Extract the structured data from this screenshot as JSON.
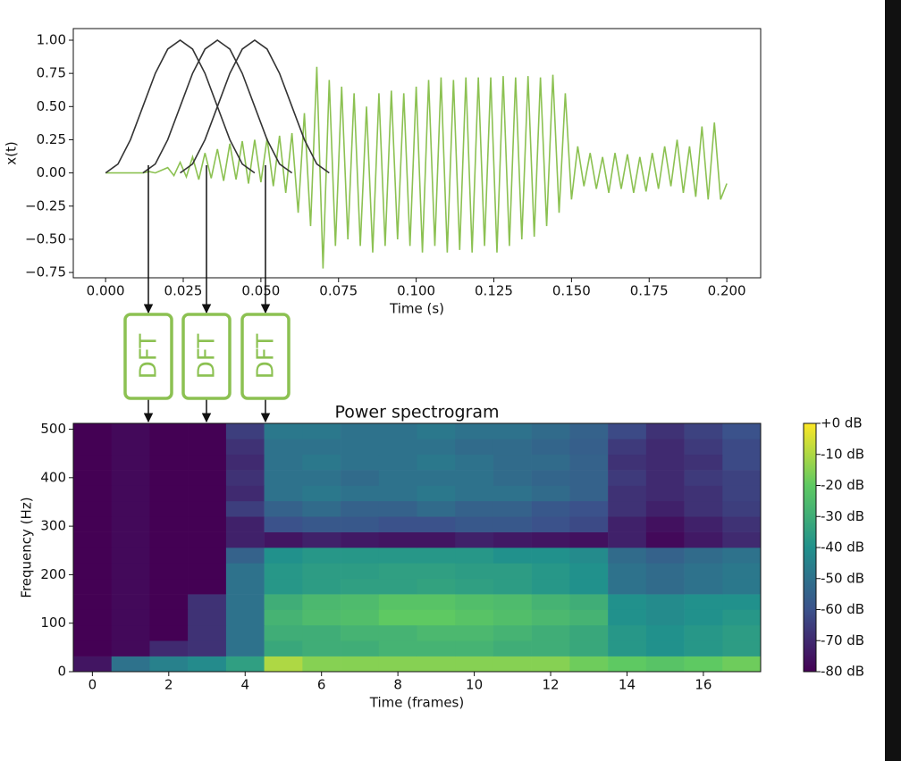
{
  "chart_data": [
    {
      "type": "line",
      "xlabel": "Time (s)",
      "ylabel": "x(t)",
      "xlim": [
        -0.0104,
        0.2109
      ],
      "ylim": [
        -0.79,
        1.0875
      ],
      "xticks": [
        {
          "value": 0,
          "label": "0.000"
        },
        {
          "value": 0.025,
          "label": "0.025"
        },
        {
          "value": 0.05,
          "label": "0.050"
        },
        {
          "value": 0.075,
          "label": "0.075"
        },
        {
          "value": 0.1,
          "label": "0.100"
        },
        {
          "value": 0.125,
          "label": "0.125"
        },
        {
          "value": 0.15,
          "label": "0.150"
        },
        {
          "value": 0.175,
          "label": "0.175"
        },
        {
          "value": 0.2,
          "label": "0.200"
        }
      ],
      "yticks": [
        {
          "value": 1,
          "label": "1.00"
        },
        {
          "value": 0.75,
          "label": "0.75"
        },
        {
          "value": 0.5,
          "label": "0.50"
        },
        {
          "value": 0.25,
          "label": "0.25"
        },
        {
          "value": 0,
          "label": "0.00"
        },
        {
          "value": -0.25,
          "label": "−0.25"
        },
        {
          "value": -0.5,
          "label": "−0.50"
        },
        {
          "value": -0.75,
          "label": "−0.75"
        }
      ],
      "annotations": [
        "DFT",
        "DFT",
        "DFT"
      ],
      "series": [
        {
          "color": "#8cc152",
          "x": [
            0,
            0.002,
            0.004,
            0.006,
            0.008,
            0.01,
            0.012,
            0.014,
            0.016,
            0.018,
            0.02,
            0.022,
            0.024,
            0.026,
            0.028,
            0.03,
            0.032,
            0.034,
            0.036,
            0.038,
            0.04,
            0.042,
            0.044,
            0.046,
            0.048,
            0.05,
            0.052,
            0.054,
            0.056,
            0.058,
            0.06,
            0.062,
            0.064,
            0.066,
            0.068,
            0.07,
            0.072,
            0.074,
            0.076,
            0.078,
            0.08,
            0.082,
            0.084,
            0.086,
            0.088,
            0.09,
            0.092,
            0.094,
            0.096,
            0.098,
            0.1,
            0.102,
            0.104,
            0.106,
            0.108,
            0.11,
            0.112,
            0.114,
            0.116,
            0.118,
            0.12,
            0.122,
            0.124,
            0.126,
            0.128,
            0.13,
            0.132,
            0.134,
            0.136,
            0.138,
            0.14,
            0.142,
            0.144,
            0.146,
            0.148,
            0.15,
            0.152,
            0.154,
            0.156,
            0.158,
            0.16,
            0.162,
            0.164,
            0.166,
            0.168,
            0.17,
            0.172,
            0.174,
            0.176,
            0.178,
            0.18,
            0.182,
            0.184,
            0.186,
            0.188,
            0.19,
            0.192,
            0.194,
            0.196,
            0.198,
            0.2
          ],
          "values": [
            0,
            0,
            0,
            0,
            0,
            0,
            0,
            0.01,
            0,
            0.02,
            0.04,
            -0.02,
            0.08,
            -0.03,
            0.12,
            -0.05,
            0.15,
            -0.04,
            0.18,
            -0.06,
            0.22,
            -0.05,
            0.24,
            -0.08,
            0.25,
            -0.07,
            0.26,
            -0.1,
            0.28,
            -0.15,
            0.3,
            -0.3,
            0.45,
            -0.4,
            0.8,
            -0.72,
            0.7,
            -0.55,
            0.65,
            -0.5,
            0.6,
            -0.55,
            0.5,
            -0.6,
            0.6,
            -0.55,
            0.62,
            -0.5,
            0.6,
            -0.55,
            0.65,
            -0.6,
            0.7,
            -0.55,
            0.72,
            -0.6,
            0.7,
            -0.58,
            0.72,
            -0.6,
            0.72,
            -0.55,
            0.72,
            -0.6,
            0.73,
            -0.55,
            0.72,
            -0.5,
            0.73,
            -0.48,
            0.72,
            -0.4,
            0.74,
            -0.3,
            0.6,
            -0.2,
            0.2,
            -0.1,
            0.15,
            -0.12,
            0.12,
            -0.15,
            0.15,
            -0.12,
            0.14,
            -0.15,
            0.12,
            -0.14,
            0.15,
            -0.12,
            0.2,
            -0.1,
            0.25,
            -0.15,
            0.2,
            -0.18,
            0.35,
            -0.2,
            0.38,
            -0.2,
            -0.08
          ]
        },
        {
          "color": "#333333",
          "x": [
            0,
            0.004,
            0.008,
            0.012,
            0.016,
            0.02,
            0.024,
            0.028,
            0.032,
            0.036,
            0.04,
            0.044,
            0.048
          ],
          "values": [
            0,
            0.067,
            0.25,
            0.5,
            0.75,
            0.933,
            1,
            0.933,
            0.75,
            0.5,
            0.25,
            0.067,
            0
          ]
        },
        {
          "color": "#333333",
          "x": [
            0.012,
            0.016,
            0.02,
            0.024,
            0.028,
            0.032,
            0.036,
            0.04,
            0.044,
            0.048,
            0.052,
            0.056,
            0.06
          ],
          "values": [
            0,
            0.067,
            0.25,
            0.5,
            0.75,
            0.933,
            1,
            0.933,
            0.75,
            0.5,
            0.25,
            0.067,
            0
          ]
        },
        {
          "color": "#333333",
          "x": [
            0.024,
            0.028,
            0.032,
            0.036,
            0.04,
            0.044,
            0.048,
            0.052,
            0.056,
            0.06,
            0.064,
            0.068,
            0.072
          ],
          "values": [
            0,
            0.067,
            0.25,
            0.5,
            0.75,
            0.933,
            1,
            0.933,
            0.75,
            0.5,
            0.25,
            0.067,
            0
          ]
        }
      ]
    },
    {
      "type": "heatmap",
      "title": "Power spectrogram",
      "xlabel": "Time (frames)",
      "ylabel": "Frequency (Hz)",
      "xlim": [
        -0.5,
        17.5
      ],
      "ylim": [
        0,
        512
      ],
      "xticks": [
        0,
        2,
        4,
        6,
        8,
        10,
        12,
        14,
        16
      ],
      "yticks": [
        0,
        100,
        200,
        300,
        400,
        500
      ],
      "colormap": "viridis",
      "clim": [
        -80,
        0
      ],
      "colorbar_ticks": [
        {
          "value": 0,
          "label": "+0 dB"
        },
        {
          "value": -10,
          "label": "-10 dB"
        },
        {
          "value": -20,
          "label": "-20 dB"
        },
        {
          "value": -30,
          "label": "-30 dB"
        },
        {
          "value": -40,
          "label": "-40 dB"
        },
        {
          "value": -50,
          "label": "-50 dB"
        },
        {
          "value": -60,
          "label": "-60 dB"
        },
        {
          "value": -70,
          "label": "-70 dB"
        },
        {
          "value": -80,
          "label": "-80 dB"
        }
      ],
      "x": [
        0,
        1,
        2,
        3,
        4,
        5,
        6,
        7,
        8,
        9,
        10,
        11,
        12,
        13,
        14,
        15,
        16,
        17
      ],
      "y_bins": [
        0,
        32,
        64,
        96,
        128,
        160,
        192,
        224,
        256,
        288,
        320,
        352,
        384,
        416,
        448,
        480,
        512
      ],
      "values": [
        [
          -75,
          -50,
          -45,
          -42,
          -35,
          -10,
          -15,
          -15,
          -15,
          -15,
          -15,
          -15,
          -15,
          -18,
          -20,
          -22,
          -20,
          -18
        ],
        [
          -80,
          -78,
          -70,
          -68,
          -50,
          -32,
          -30,
          -30,
          -28,
          -28,
          -28,
          -30,
          -30,
          -32,
          -38,
          -40,
          -38,
          -36
        ],
        [
          -80,
          -78,
          -80,
          -68,
          -50,
          -30,
          -30,
          -28,
          -28,
          -26,
          -26,
          -28,
          -30,
          -32,
          -38,
          -40,
          -38,
          -36
        ],
        [
          -80,
          -78,
          -80,
          -68,
          -50,
          -28,
          -25,
          -24,
          -20,
          -20,
          -22,
          -24,
          -26,
          -28,
          -40,
          -42,
          -40,
          -38
        ],
        [
          -80,
          -78,
          -80,
          -68,
          -50,
          -30,
          -26,
          -25,
          -22,
          -22,
          -24,
          -25,
          -28,
          -30,
          -40,
          -42,
          -40,
          -40
        ],
        [
          -80,
          -78,
          -80,
          -80,
          -50,
          -38,
          -36,
          -35,
          -35,
          -34,
          -35,
          -36,
          -38,
          -40,
          -50,
          -52,
          -50,
          -48
        ],
        [
          -80,
          -78,
          -80,
          -80,
          -50,
          -38,
          -36,
          -36,
          -35,
          -35,
          -36,
          -36,
          -38,
          -40,
          -50,
          -52,
          -50,
          -48
        ],
        [
          -80,
          -78,
          -80,
          -80,
          -55,
          -40,
          -38,
          -38,
          -38,
          -38,
          -38,
          -40,
          -40,
          -42,
          -52,
          -55,
          -52,
          -50
        ],
        [
          -80,
          -78,
          -80,
          -80,
          -72,
          -75,
          -72,
          -74,
          -75,
          -75,
          -72,
          -74,
          -75,
          -76,
          -72,
          -78,
          -74,
          -70
        ],
        [
          -80,
          -78,
          -80,
          -80,
          -72,
          -60,
          -58,
          -58,
          -60,
          -60,
          -58,
          -58,
          -60,
          -62,
          -72,
          -76,
          -72,
          -68
        ],
        [
          -80,
          -78,
          -80,
          -80,
          -65,
          -55,
          -52,
          -55,
          -55,
          -52,
          -55,
          -55,
          -58,
          -60,
          -68,
          -72,
          -68,
          -65
        ],
        [
          -80,
          -78,
          -80,
          -80,
          -70,
          -50,
          -48,
          -50,
          -50,
          -48,
          -50,
          -50,
          -52,
          -55,
          -68,
          -70,
          -68,
          -64
        ],
        [
          -80,
          -78,
          -80,
          -80,
          -68,
          -50,
          -50,
          -52,
          -50,
          -50,
          -50,
          -52,
          -54,
          -55,
          -66,
          -70,
          -66,
          -64
        ],
        [
          -80,
          -78,
          -80,
          -80,
          -70,
          -50,
          -48,
          -50,
          -50,
          -48,
          -50,
          -52,
          -52,
          -55,
          -68,
          -70,
          -68,
          -62
        ],
        [
          -80,
          -78,
          -80,
          -80,
          -68,
          -50,
          -50,
          -50,
          -50,
          -50,
          -52,
          -52,
          -54,
          -56,
          -66,
          -70,
          -66,
          -62
        ],
        [
          -80,
          -78,
          -80,
          -80,
          -65,
          -48,
          -48,
          -50,
          -50,
          -48,
          -50,
          -50,
          -52,
          -55,
          -62,
          -68,
          -64,
          -60
        ]
      ]
    }
  ]
}
